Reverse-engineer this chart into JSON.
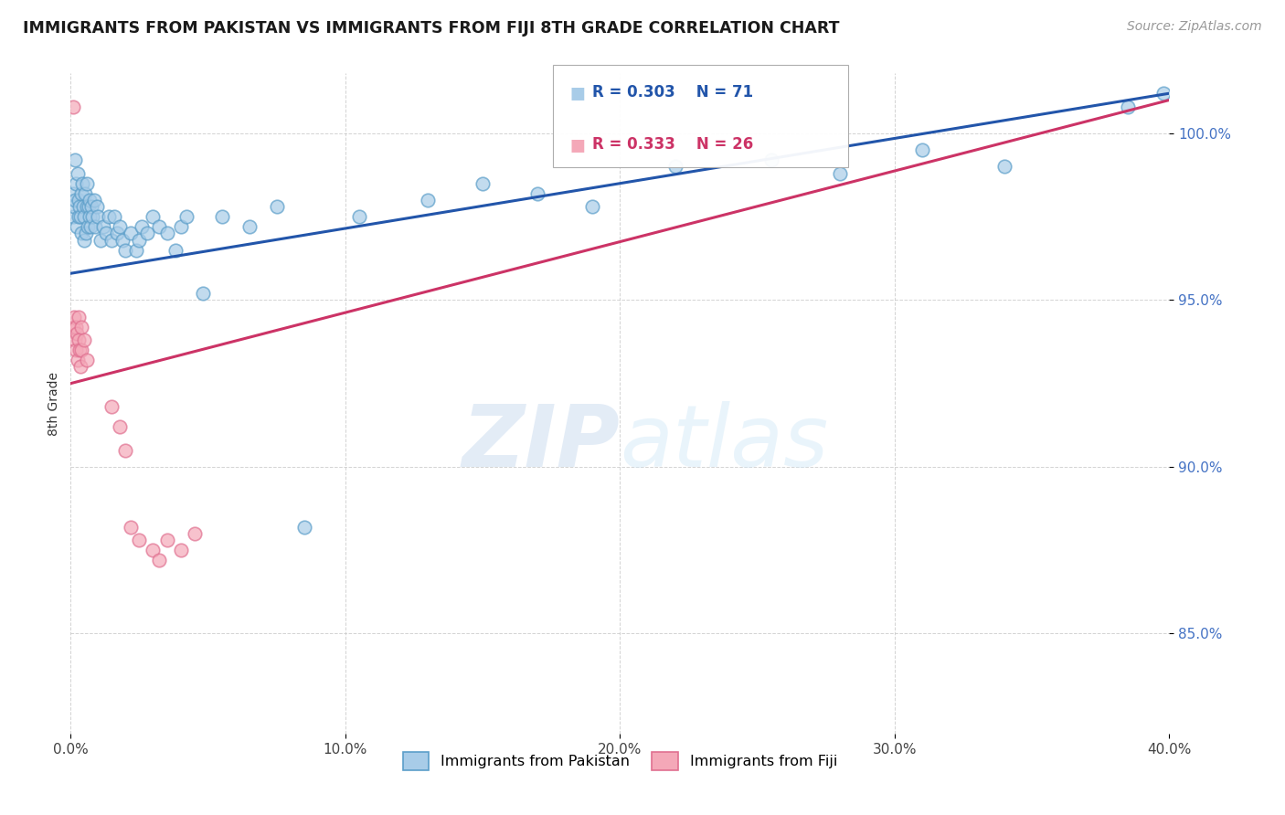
{
  "title": "IMMIGRANTS FROM PAKISTAN VS IMMIGRANTS FROM FIJI 8TH GRADE CORRELATION CHART",
  "source": "Source: ZipAtlas.com",
  "ylabel": "8th Grade",
  "xmin": 0.0,
  "xmax": 40.0,
  "ymin": 82.0,
  "ymax": 101.8,
  "yticks": [
    85.0,
    90.0,
    95.0,
    100.0
  ],
  "xticks": [
    0.0,
    10.0,
    20.0,
    30.0,
    40.0
  ],
  "blue_label": "Immigrants from Pakistan",
  "pink_label": "Immigrants from Fiji",
  "blue_R": 0.303,
  "blue_N": 71,
  "pink_R": 0.333,
  "pink_N": 26,
  "blue_color": "#a8cce8",
  "pink_color": "#f4a8b8",
  "blue_edge_color": "#5b9ec9",
  "pink_edge_color": "#e07090",
  "blue_line_color": "#2255aa",
  "pink_line_color": "#cc3366",
  "watermark_color": "#ddeeff",
  "blue_x": [
    0.08,
    0.1,
    0.12,
    0.15,
    0.17,
    0.2,
    0.22,
    0.25,
    0.28,
    0.3,
    0.32,
    0.35,
    0.38,
    0.4,
    0.42,
    0.45,
    0.48,
    0.5,
    0.52,
    0.55,
    0.58,
    0.6,
    0.62,
    0.65,
    0.68,
    0.7,
    0.72,
    0.75,
    0.8,
    0.85,
    0.9,
    0.95,
    1.0,
    1.1,
    1.2,
    1.3,
    1.4,
    1.5,
    1.6,
    1.7,
    1.8,
    1.9,
    2.0,
    2.2,
    2.4,
    2.5,
    2.6,
    2.8,
    3.0,
    3.2,
    3.5,
    3.8,
    4.0,
    4.2,
    4.8,
    5.5,
    6.5,
    7.5,
    8.5,
    10.5,
    13.0,
    15.0,
    17.0,
    19.0,
    22.0,
    25.5,
    28.0,
    31.0,
    34.0,
    38.5,
    39.8
  ],
  "blue_y": [
    97.5,
    98.2,
    97.8,
    98.0,
    99.2,
    98.5,
    97.2,
    98.8,
    97.5,
    98.0,
    97.8,
    97.5,
    98.2,
    97.0,
    98.5,
    97.8,
    96.8,
    97.5,
    98.2,
    97.0,
    97.8,
    98.5,
    97.2,
    97.8,
    97.5,
    98.0,
    97.2,
    97.8,
    97.5,
    98.0,
    97.2,
    97.8,
    97.5,
    96.8,
    97.2,
    97.0,
    97.5,
    96.8,
    97.5,
    97.0,
    97.2,
    96.8,
    96.5,
    97.0,
    96.5,
    96.8,
    97.2,
    97.0,
    97.5,
    97.2,
    97.0,
    96.5,
    97.2,
    97.5,
    95.2,
    97.5,
    97.2,
    97.8,
    88.2,
    97.5,
    98.0,
    98.5,
    98.2,
    97.8,
    99.0,
    99.2,
    98.8,
    99.5,
    99.0,
    100.8,
    101.2
  ],
  "pink_x": [
    0.08,
    0.1,
    0.12,
    0.15,
    0.18,
    0.2,
    0.22,
    0.25,
    0.28,
    0.3,
    0.32,
    0.35,
    0.38,
    0.4,
    0.5,
    0.6,
    1.5,
    1.8,
    2.0,
    2.2,
    2.5,
    3.0,
    3.2,
    3.5,
    4.0,
    4.5
  ],
  "pink_y": [
    100.8,
    94.2,
    94.5,
    93.8,
    94.2,
    93.5,
    94.0,
    93.2,
    94.5,
    93.8,
    93.5,
    93.0,
    94.2,
    93.5,
    93.8,
    93.2,
    91.8,
    91.2,
    90.5,
    88.2,
    87.8,
    87.5,
    87.2,
    87.8,
    87.5,
    88.0
  ],
  "blue_reg_x0": 0.0,
  "blue_reg_x1": 40.0,
  "blue_reg_y0": 95.8,
  "blue_reg_y1": 101.2,
  "pink_reg_x0": 0.0,
  "pink_reg_x1": 40.0,
  "pink_reg_y0": 92.5,
  "pink_reg_y1": 101.0
}
